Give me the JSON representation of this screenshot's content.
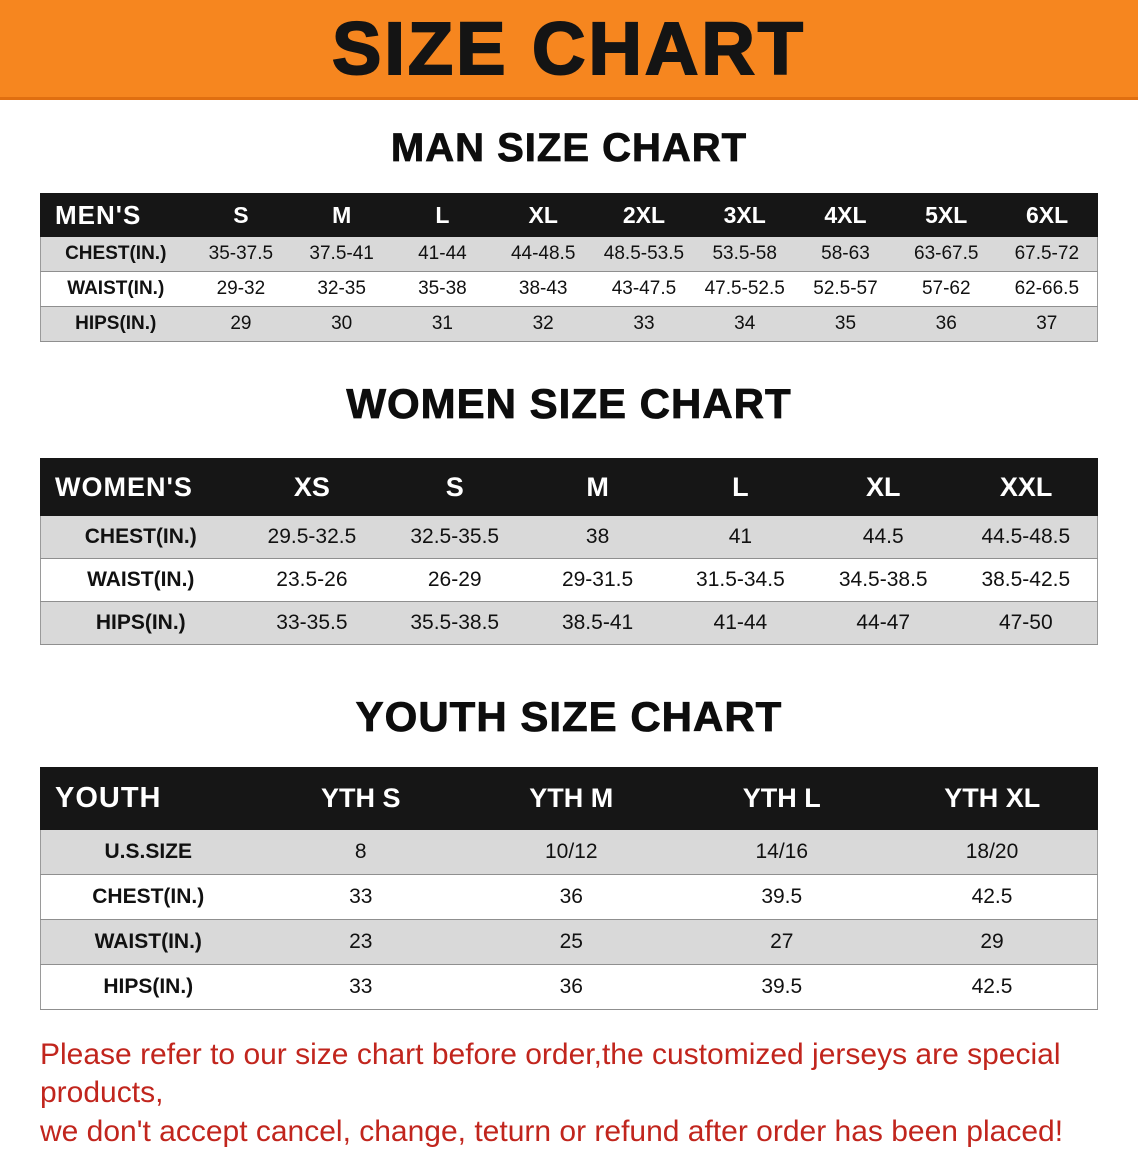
{
  "banner": {
    "title": "SIZE CHART",
    "bg_color": "#f6861f"
  },
  "sections": [
    {
      "heading": "MAN SIZE CHART",
      "table": {
        "label": "MEN'S",
        "columns": [
          "S",
          "M",
          "L",
          "XL",
          "2XL",
          "3XL",
          "4XL",
          "5XL",
          "6XL"
        ],
        "rows": [
          {
            "label": "CHEST(IN.)",
            "values": [
              "35-37.5",
              "37.5-41",
              "41-44",
              "44-48.5",
              "48.5-53.5",
              "53.5-58",
              "58-63",
              "63-67.5",
              "67.5-72"
            ]
          },
          {
            "label": "WAIST(IN.)",
            "values": [
              "29-32",
              "32-35",
              "35-38",
              "38-43",
              "43-47.5",
              "47.5-52.5",
              "52.5-57",
              "57-62",
              "62-66.5"
            ]
          },
          {
            "label": "HIPS(IN.)",
            "values": [
              "29",
              "30",
              "31",
              "32",
              "33",
              "34",
              "35",
              "36",
              "37"
            ]
          }
        ]
      }
    },
    {
      "heading": "WOMEN SIZE CHART",
      "table": {
        "label": "WOMEN'S",
        "columns": [
          "XS",
          "S",
          "M",
          "L",
          "XL",
          "XXL"
        ],
        "rows": [
          {
            "label": "CHEST(IN.)",
            "values": [
              "29.5-32.5",
              "32.5-35.5",
              "38",
              "41",
              "44.5",
              "44.5-48.5"
            ]
          },
          {
            "label": "WAIST(IN.)",
            "values": [
              "23.5-26",
              "26-29",
              "29-31.5",
              "31.5-34.5",
              "34.5-38.5",
              "38.5-42.5"
            ]
          },
          {
            "label": "HIPS(IN.)",
            "values": [
              "33-35.5",
              "35.5-38.5",
              "38.5-41",
              "41-44",
              "44-47",
              "47-50"
            ]
          }
        ]
      }
    },
    {
      "heading": "YOUTH SIZE CHART",
      "table": {
        "label": "YOUTH",
        "columns": [
          "YTH S",
          "YTH M",
          "YTH L",
          "YTH XL"
        ],
        "rows": [
          {
            "label": "U.S.SIZE",
            "values": [
              "8",
              "10/12",
              "14/16",
              "18/20"
            ]
          },
          {
            "label": "CHEST(IN.)",
            "values": [
              "33",
              "36",
              "39.5",
              "42.5"
            ]
          },
          {
            "label": "WAIST(IN.)",
            "values": [
              "23",
              "25",
              "27",
              "29"
            ]
          },
          {
            "label": "HIPS(IN.)",
            "values": [
              "33",
              "36",
              "39.5",
              "42.5"
            ]
          }
        ]
      }
    }
  ],
  "disclaimer": {
    "color": "#c1251d",
    "lines": [
      "Please refer to our size chart before order,the customized jerseys are special products,",
      "we don't accept cancel, change, teturn or refund after order has been placed!"
    ]
  }
}
